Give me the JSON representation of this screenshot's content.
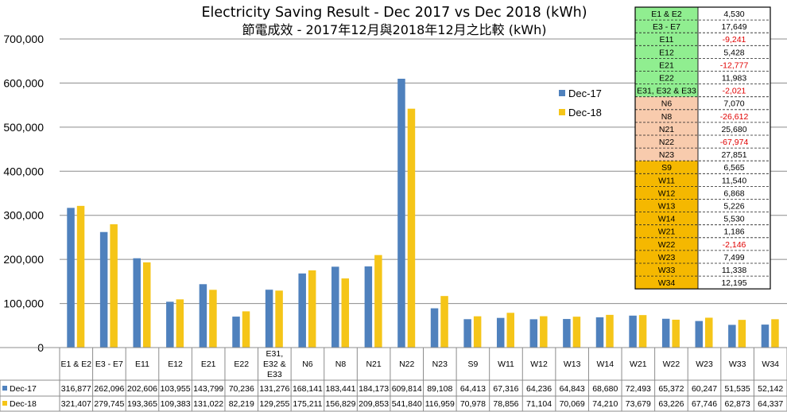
{
  "chart_data": {
    "type": "bar",
    "title": "Electricity Saving Result - Dec 2017 vs Dec 2018 (kWh)",
    "subtitle": "節電成效 - 2017年12月與2018年12月之比較 (kWh)",
    "xlabel": "",
    "ylabel": "",
    "ylim": [
      0,
      700000
    ],
    "yticks": [
      "700,000",
      "600,000",
      "500,000",
      "400,000",
      "300,000",
      "200,000",
      "100,000",
      "0"
    ],
    "grid": true,
    "legend_position": "right",
    "categories": [
      "E1 & E2",
      "E3 - E7",
      "E11",
      "E12",
      "E21",
      "E22",
      "E31, E32 & E33",
      "N6",
      "N8",
      "N21",
      "N22",
      "N23",
      "S9",
      "W11",
      "W12",
      "W13",
      "W14",
      "W21",
      "W22",
      "W23",
      "W33",
      "W34"
    ],
    "series": [
      {
        "name": "Dec-17",
        "color": "#4f81bd",
        "values": [
          316877,
          262096,
          202606,
          103955,
          143799,
          70236,
          131276,
          168141,
          183441,
          184173,
          609814,
          89108,
          64413,
          67316,
          64236,
          64843,
          68680,
          72493,
          65372,
          60247,
          51535,
          52142
        ],
        "labels": [
          "316,877",
          "262,096",
          "202,606",
          "103,955",
          "143,799",
          "70,236",
          "131,276",
          "168,141",
          "183,441",
          "184,173",
          "609,814",
          "89,108",
          "64,413",
          "67,316",
          "64,236",
          "64,843",
          "68,680",
          "72,493",
          "65,372",
          "60,247",
          "51,535",
          "52,142"
        ]
      },
      {
        "name": "Dec-18",
        "color": "#f5c518",
        "values": [
          321407,
          279745,
          193365,
          109383,
          131022,
          82219,
          129255,
          175211,
          156829,
          209853,
          541840,
          116959,
          70978,
          78856,
          71104,
          70069,
          74210,
          73679,
          63226,
          67746,
          62873,
          64337
        ],
        "labels": [
          "321,407",
          "279,745",
          "193,365",
          "109,383",
          "131,022",
          "82,219",
          "129,255",
          "175,211",
          "156,829",
          "209,853",
          "541,840",
          "116,959",
          "70,978",
          "78,856",
          "71,104",
          "70,069",
          "74,210",
          "73,679",
          "63,226",
          "67,746",
          "62,873",
          "64,337"
        ]
      }
    ],
    "savings_table": [
      {
        "zone": "E1 & E2",
        "value": "4,530",
        "negative": false,
        "group_color": "#90ee90"
      },
      {
        "zone": "E3 - E7",
        "value": "17,649",
        "negative": false,
        "group_color": "#90ee90"
      },
      {
        "zone": "E11",
        "value": "-9,241",
        "negative": true,
        "group_color": "#90ee90"
      },
      {
        "zone": "E12",
        "value": "5,428",
        "negative": false,
        "group_color": "#90ee90"
      },
      {
        "zone": "E21",
        "value": "-12,777",
        "negative": true,
        "group_color": "#90ee90"
      },
      {
        "zone": "E22",
        "value": "11,983",
        "negative": false,
        "group_color": "#90ee90"
      },
      {
        "zone": "E31, E32 & E33",
        "value": "-2,021",
        "negative": true,
        "group_color": "#90ee90"
      },
      {
        "zone": "N6",
        "value": "7,070",
        "negative": false,
        "group_color": "#f8cbad"
      },
      {
        "zone": "N8",
        "value": "-26,612",
        "negative": true,
        "group_color": "#f8cbad"
      },
      {
        "zone": "N21",
        "value": "25,680",
        "negative": false,
        "group_color": "#f8cbad"
      },
      {
        "zone": "N22",
        "value": "-67,974",
        "negative": true,
        "group_color": "#f8cbad"
      },
      {
        "zone": "N23",
        "value": "27,851",
        "negative": false,
        "group_color": "#f8cbad"
      },
      {
        "zone": "S9",
        "value": "6,565",
        "negative": false,
        "group_color": "#f5b800"
      },
      {
        "zone": "W11",
        "value": "11,540",
        "negative": false,
        "group_color": "#f5b800"
      },
      {
        "zone": "W12",
        "value": "6,868",
        "negative": false,
        "group_color": "#f5b800"
      },
      {
        "zone": "W13",
        "value": "5,226",
        "negative": false,
        "group_color": "#f5b800"
      },
      {
        "zone": "W14",
        "value": "5,530",
        "negative": false,
        "group_color": "#f5b800"
      },
      {
        "zone": "W21",
        "value": "1,186",
        "negative": false,
        "group_color": "#f5b800"
      },
      {
        "zone": "W22",
        "value": "-2,146",
        "negative": true,
        "group_color": "#f5b800"
      },
      {
        "zone": "W23",
        "value": "7,499",
        "negative": false,
        "group_color": "#f5b800"
      },
      {
        "zone": "W33",
        "value": "11,338",
        "negative": false,
        "group_color": "#f5b800"
      },
      {
        "zone": "W34",
        "value": "12,195",
        "negative": false,
        "group_color": "#f5b800"
      }
    ]
  }
}
